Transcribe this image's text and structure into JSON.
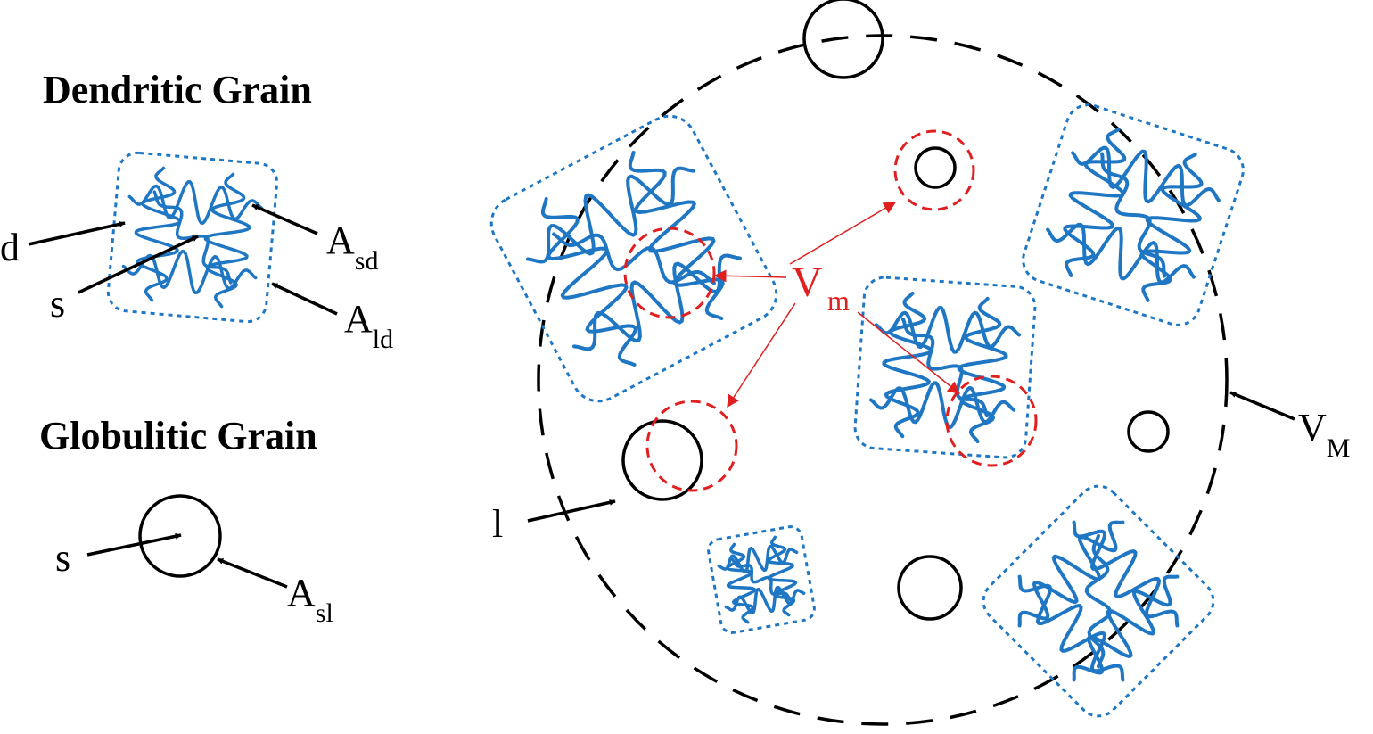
{
  "colors": {
    "dendrite": "#1f77c4",
    "accent_red": "#e02020",
    "ink": "#000000"
  },
  "legend": {
    "dendritic_title": "Dendritic Grain",
    "globulitic_title": "Globulitic Grain",
    "dendritic_labels": {
      "d": "d",
      "s": "s",
      "A": "A",
      "sd": "sd",
      "ld": "ld"
    },
    "globulitic_labels": {
      "s": "s",
      "A": "A",
      "sl": "sl"
    }
  },
  "main": {
    "l_label": "l",
    "V": "V",
    "M_sub": "M",
    "red_V": "V",
    "red_m": "m"
  }
}
